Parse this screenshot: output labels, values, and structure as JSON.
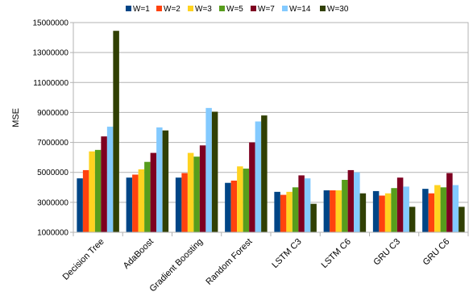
{
  "chart_data": {
    "type": "bar",
    "title": "",
    "xlabel": "",
    "ylabel": "MSE",
    "ylim": [
      1000000,
      15000000
    ],
    "yticks": [
      1000000,
      3000000,
      5000000,
      7000000,
      9000000,
      11000000,
      13000000,
      15000000
    ],
    "ytick_labels": [
      "1000000",
      "3000000",
      "5000000",
      "7000000",
      "9000000",
      "11000000",
      "13000000",
      "15000000"
    ],
    "grid": true,
    "legend_position": "top",
    "categories": [
      "Decision Tree",
      "AdaBoost",
      "Gradient Boosting",
      "Random Forest",
      "LSTM C3",
      "LSTM C6",
      "GRU C3",
      "GRU C6"
    ],
    "series": [
      {
        "name": "W=1",
        "color": "#004586",
        "values": [
          4600000,
          4650000,
          4650000,
          4300000,
          3700000,
          3800000,
          3750000,
          3900000
        ]
      },
      {
        "name": "W=2",
        "color": "#ff420e",
        "values": [
          5150000,
          4850000,
          4950000,
          4450000,
          3500000,
          3800000,
          3450000,
          3600000
        ]
      },
      {
        "name": "W=3",
        "color": "#ffd320",
        "values": [
          6400000,
          5200000,
          6300000,
          5400000,
          3700000,
          3800000,
          3600000,
          4150000
        ]
      },
      {
        "name": "W=5",
        "color": "#579d1c",
        "values": [
          6500000,
          5700000,
          6050000,
          5250000,
          4000000,
          4500000,
          3950000,
          4000000
        ]
      },
      {
        "name": "W=7",
        "color": "#7e0021",
        "values": [
          7400000,
          6300000,
          6800000,
          7000000,
          4800000,
          5150000,
          4650000,
          4950000
        ]
      },
      {
        "name": "W=14",
        "color": "#83caff",
        "values": [
          8050000,
          8000000,
          9300000,
          8400000,
          4600000,
          5000000,
          4050000,
          4150000
        ]
      },
      {
        "name": "W=30",
        "color": "#314004",
        "values": [
          14450000,
          7800000,
          9050000,
          8800000,
          2900000,
          3600000,
          2700000,
          2700000
        ]
      }
    ]
  }
}
